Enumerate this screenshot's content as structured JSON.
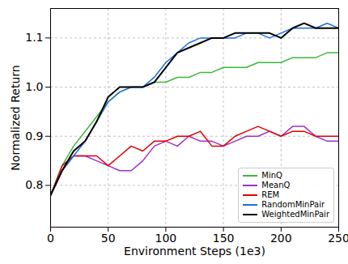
{
  "chart_data": {
    "type": "line",
    "x_label": "Environment Steps (1e3)",
    "y_label": "Normalized Return",
    "x": [
      0,
      10,
      20,
      30,
      40,
      50,
      60,
      70,
      80,
      90,
      100,
      110,
      120,
      130,
      140,
      150,
      160,
      170,
      180,
      190,
      200,
      210,
      220,
      230,
      240,
      250
    ],
    "series": [
      {
        "name": "MinQ",
        "color": "#3cb83c",
        "values": [
          0.78,
          0.84,
          0.88,
          0.91,
          0.94,
          0.97,
          0.99,
          1.0,
          1.0,
          1.01,
          1.01,
          1.02,
          1.02,
          1.03,
          1.03,
          1.04,
          1.04,
          1.04,
          1.05,
          1.05,
          1.05,
          1.06,
          1.06,
          1.06,
          1.07,
          1.07
        ]
      },
      {
        "name": "MeanQ",
        "color": "#9b30d0",
        "values": [
          0.78,
          0.83,
          0.86,
          0.86,
          0.85,
          0.84,
          0.83,
          0.83,
          0.85,
          0.88,
          0.89,
          0.88,
          0.9,
          0.89,
          0.89,
          0.88,
          0.89,
          0.9,
          0.9,
          0.91,
          0.9,
          0.92,
          0.92,
          0.9,
          0.89,
          0.89
        ]
      },
      {
        "name": "REM",
        "color": "#e00000",
        "values": [
          0.78,
          0.84,
          0.86,
          0.86,
          0.86,
          0.84,
          0.86,
          0.88,
          0.87,
          0.89,
          0.89,
          0.9,
          0.9,
          0.91,
          0.88,
          0.88,
          0.9,
          0.91,
          0.92,
          0.91,
          0.9,
          0.91,
          0.91,
          0.9,
          0.9,
          0.9
        ]
      },
      {
        "name": "RandomMinPair",
        "color": "#1f6fe0",
        "values": [
          0.78,
          0.83,
          0.86,
          0.89,
          0.93,
          0.97,
          0.99,
          1.0,
          1.0,
          1.02,
          1.05,
          1.07,
          1.09,
          1.1,
          1.1,
          1.1,
          1.1,
          1.11,
          1.11,
          1.1,
          1.11,
          1.12,
          1.12,
          1.12,
          1.13,
          1.12
        ]
      },
      {
        "name": "WeightedMinPair",
        "color": "#000000",
        "values": [
          0.78,
          0.83,
          0.87,
          0.89,
          0.93,
          0.98,
          1.0,
          1.0,
          1.0,
          1.01,
          1.04,
          1.07,
          1.08,
          1.09,
          1.1,
          1.1,
          1.11,
          1.11,
          1.11,
          1.11,
          1.1,
          1.12,
          1.13,
          1.12,
          1.12,
          1.12
        ]
      }
    ],
    "xlim": [
      0,
      250
    ],
    "xticks": [
      0,
      50,
      100,
      150,
      200,
      250
    ],
    "ylim": [
      0.715,
      1.16
    ],
    "yticks": [
      0.8,
      0.9,
      {
        "value": 1.0,
        "label": "1.0"
      },
      1.1
    ],
    "grid": true,
    "legend": "lower right"
  }
}
